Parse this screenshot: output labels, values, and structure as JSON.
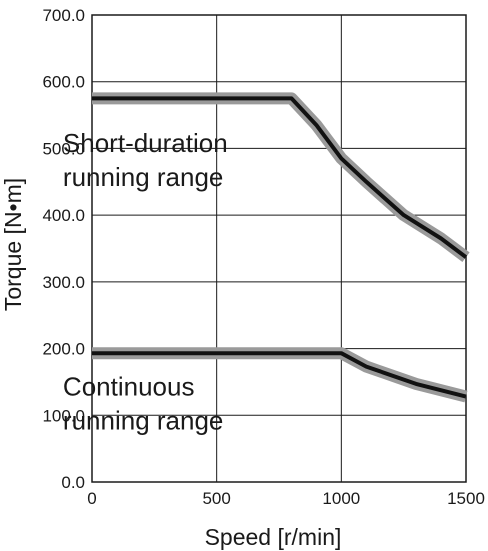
{
  "chart_data": {
    "type": "line",
    "xlabel": "Speed [r/min]",
    "ylabel": "Torque [N•m]",
    "xlim": [
      0,
      1500
    ],
    "ylim": [
      0,
      700
    ],
    "x_ticks": [
      0,
      500,
      1000,
      1500
    ],
    "x_tick_labels": [
      "0",
      "500",
      "1000",
      "1500"
    ],
    "y_ticks": [
      0,
      100,
      200,
      300,
      400,
      500,
      600,
      700
    ],
    "y_tick_labels": [
      "0.0",
      "100.0",
      "200.0",
      "300.0",
      "400.0",
      "500.0",
      "600.0",
      "700.0"
    ],
    "grid": true,
    "series": [
      {
        "points": [
          [
            0,
            575
          ],
          [
            800,
            575
          ],
          [
            900,
            535
          ],
          [
            1000,
            485
          ],
          [
            1100,
            450
          ],
          [
            1250,
            400
          ],
          [
            1400,
            365
          ],
          [
            1500,
            337
          ]
        ]
      },
      {
        "points": [
          [
            0,
            193
          ],
          [
            1000,
            193
          ],
          [
            1100,
            173
          ],
          [
            1300,
            147
          ],
          [
            1500,
            128
          ]
        ]
      }
    ],
    "annotations": [
      {
        "lines": [
          "Short-duration",
          "running range"
        ],
        "x": 100,
        "y": 495
      },
      {
        "lines": [
          "Continuous",
          "running range"
        ],
        "x": 100,
        "y": 130
      }
    ],
    "colors": {
      "curve_core": "#111111",
      "curve_halo": "#9a9a9a",
      "axis": "#1a1a1a"
    }
  }
}
